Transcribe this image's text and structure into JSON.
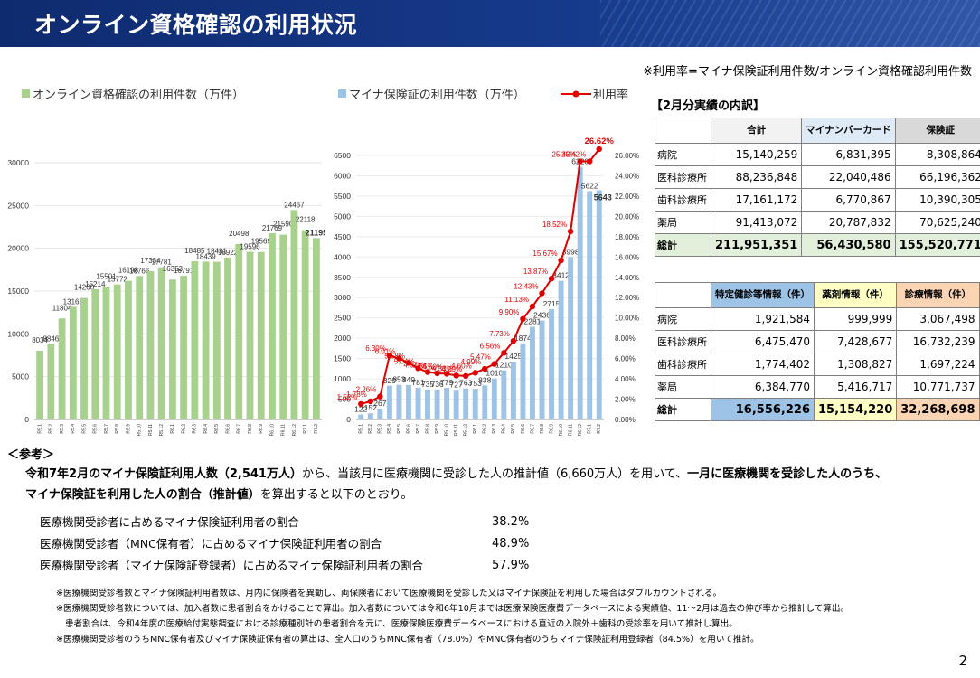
{
  "header": {
    "title": "オンライン資格確認の利用状況"
  },
  "note_top": "※利用率=マイナ保険証利用件数/オンライン資格確認利用件数",
  "chart_data": [
    {
      "type": "bar",
      "series": [
        {
          "name": "オンライン資格確認の利用件数（万件）",
          "values": [
            8034,
            8846,
            11804,
            13165,
            14200,
            15214,
            15501,
            15772,
            16198,
            16766,
            17334,
            17781,
            16353,
            16791,
            18485,
            18439,
            18431,
            18922,
            20498,
            19596,
            19569,
            21769,
            21590,
            24467,
            22118,
            21195
          ]
        }
      ],
      "categories": [
        "R5.1",
        "R5.2",
        "R5.3",
        "R5.4",
        "R5.5",
        "R5.6",
        "R5.7",
        "R5.8",
        "R5.9",
        "R5.10",
        "R5.11",
        "R5.12",
        "R6.1",
        "R6.2",
        "R6.3",
        "R6.4",
        "R6.5",
        "R6.6",
        "R6.7",
        "R6.8",
        "R6.9",
        "R6.10",
        "R6.11",
        "R6.12",
        "R7.1",
        "R7.2"
      ],
      "yticks": [
        "0",
        "5000",
        "10000",
        "15000",
        "20000",
        "25000",
        "30000"
      ],
      "ylim": [
        0,
        30000
      ],
      "color": "#a9d18e"
    },
    {
      "type": "bar+line",
      "categories": [
        "R5.1",
        "R5.2",
        "R5.3",
        "R5.4",
        "R5.5",
        "R5.6",
        "R5.7",
        "R5.8",
        "R5.9",
        "R5.10",
        "R5.11",
        "R5.12",
        "R6.1",
        "R6.2",
        "R6.3",
        "R6.4",
        "R6.5",
        "R6.6",
        "R6.7",
        "R6.8",
        "R6.9",
        "R6.10",
        "R6.11",
        "R6.12",
        "R7.1",
        "R7.2"
      ],
      "series": [
        {
          "name": "マイナ保険証の利用件数（万件）",
          "type": "bar",
          "values": [
            122,
            152,
            267,
            829,
            853,
            849,
            781,
            735,
            736,
            779,
            727,
            763,
            753,
            838,
            1010,
            1210,
            1425,
            1874,
            2281,
            2436,
            2715,
            3412,
            3998,
            6220,
            5622,
            5643
          ]
        },
        {
          "name": "利用率",
          "type": "line",
          "values": [
            1.52,
            1.78,
            2.26,
            6.3,
            6.01,
            5.58,
            5.04,
            4.67,
            4.55,
            4.5,
            4.33,
            4.29,
            4.6,
            4.99,
            5.47,
            6.56,
            7.73,
            9.9,
            11.13,
            12.43,
            13.87,
            15.67,
            18.52,
            25.42,
            25.42,
            26.62
          ]
        }
      ],
      "y_left": {
        "ylim": [
          0,
          6500
        ],
        "ticks": [
          "0",
          "500",
          "1000",
          "1500",
          "2000",
          "2500",
          "3000",
          "3500",
          "4000",
          "4500",
          "5000",
          "5500",
          "6000",
          "6500"
        ]
      },
      "y_right": {
        "ylim": [
          0,
          26
        ],
        "ticks": [
          "0.00%",
          "2.00%",
          "4.00%",
          "6.00%",
          "8.00%",
          "10.00%",
          "12.00%",
          "14.00%",
          "16.00%",
          "18.00%",
          "20.00%",
          "22.00%",
          "24.00%",
          "26.00%"
        ]
      },
      "colors": {
        "bar": "#9dc3e6",
        "line": "#e00000"
      },
      "rate_labels": [
        "1.52%",
        "1.78%",
        "2.26%",
        "6.30%",
        "6.01%",
        "5.58%",
        "5.04%",
        "4.67%",
        "4.55%",
        "4.50%",
        "4.33%",
        "4.29%",
        "4.60%",
        "4.99%",
        "5.47%",
        "6.56%",
        "7.73%",
        "9.90%",
        "11.13%",
        "12.43%",
        "13.87%",
        "15.67%",
        "18.52%",
        "25.42%",
        "25.42%",
        "26.62%"
      ]
    }
  ],
  "breakdown": {
    "title": "【2月分実績の内訳】",
    "headers": [
      "合計",
      "マイナンバーカード",
      "保険証"
    ],
    "rows": [
      {
        "label": "病院",
        "values": [
          "15,140,259",
          "6,831,395",
          "8,308,864"
        ]
      },
      {
        "label": "医科診療所",
        "values": [
          "88,236,848",
          "22,040,486",
          "66,196,362"
        ]
      },
      {
        "label": "歯科診療所",
        "values": [
          "17,161,172",
          "6,770,867",
          "10,390,305"
        ]
      },
      {
        "label": "薬局",
        "values": [
          "91,413,072",
          "20,787,832",
          "70,625,240"
        ]
      }
    ],
    "total": {
      "label": "総計",
      "values": [
        "211,951,351",
        "56,430,580",
        "155,520,771"
      ]
    }
  },
  "info": {
    "headers": [
      "特定健診等情報（件）",
      "薬剤情報（件）",
      "診療情報（件）"
    ],
    "rows": [
      {
        "label": "病院",
        "values": [
          "1,921,584",
          "999,999",
          "3,067,498"
        ]
      },
      {
        "label": "医科診療所",
        "values": [
          "6,475,470",
          "7,428,677",
          "16,732,239"
        ]
      },
      {
        "label": "歯科診療所",
        "values": [
          "1,774,402",
          "1,308,827",
          "1,697,224"
        ]
      },
      {
        "label": "薬局",
        "values": [
          "6,384,770",
          "5,416,717",
          "10,771,737"
        ]
      }
    ],
    "total": {
      "label": "総計",
      "values": [
        "16,556,226",
        "15,154,220",
        "32,268,698"
      ]
    }
  },
  "reference": {
    "heading": "＜参考＞",
    "p1": "令和7年2月のマイナ保険証利用人数（2,541万人）",
    "p2": "から、当該月に医療機関に受診した人の推計値（6,660万人）を用いて、",
    "p3": "一月に医療機関を受診した人のうち、",
    "p4": "マイナ保険証を利用した人の割合（推計値）",
    "p5": "を算出すると以下のとおり。",
    "rates": [
      {
        "label": "医療機関受診者に占めるマイナ保険証利用者の割合",
        "value": "38.2%"
      },
      {
        "label": "医療機関受診者（MNC保有者）に占めるマイナ保険証利用者の割合",
        "value": "48.9%"
      },
      {
        "label": "医療機関受診者（マイナ保険証登録者）に占めるマイナ保険証利用者の割合",
        "value": "57.9%"
      }
    ]
  },
  "footnotes": [
    "※医療機関受診者数とマイナ保険証利用者数は、月内に保険者を異動し、両保険者において医療機関を受診した又はマイナ保険証を利用した場合はダブルカウントされる。",
    "※医療機関受診者数については、加入者数に患者割合をかけることで算出。加入者数については令和6年10月までは医療保険医療費データベースによる実績値、11～2月は過去の伸び率から推計して算出。",
    "患者割合は、令和4年度の医療給付実態調査における診療種別計の患者割合を元に、医療保険医療費データベースにおける直近の入院外＋歯科の受診率を用いて推計し算出。",
    "※医療機関受診者のうちMNC保有者及びマイナ保険証保有者の算出は、全人口のうちMNC保有者（78.0%）やMNC保有者のうちマイナ保険証利用登録者（84.5%）を用いて推計。"
  ],
  "page_number": "2"
}
